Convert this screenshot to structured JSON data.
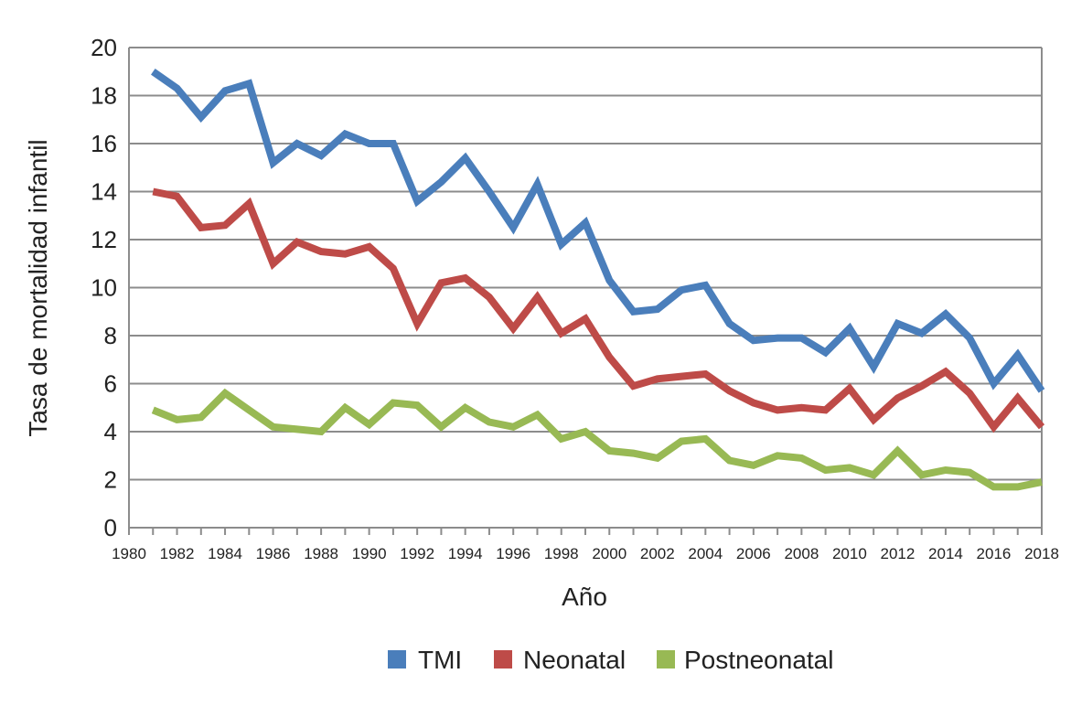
{
  "chart_data": {
    "type": "line",
    "xlabel": "Año",
    "ylabel": "Tasa de mortalidad infantil",
    "xlim": [
      1980,
      2018
    ],
    "ylim": [
      0,
      20
    ],
    "y_ticks": [
      0,
      2,
      4,
      6,
      8,
      10,
      12,
      14,
      16,
      18,
      20
    ],
    "x_ticks": [
      1980,
      1982,
      1984,
      1986,
      1988,
      1990,
      1992,
      1994,
      1996,
      1998,
      2000,
      2002,
      2004,
      2006,
      2008,
      2010,
      2012,
      2014,
      2016,
      2018
    ],
    "grid": true,
    "legend": "bottom",
    "x": [
      1981,
      1982,
      1983,
      1984,
      1985,
      1986,
      1987,
      1988,
      1989,
      1990,
      1991,
      1992,
      1993,
      1994,
      1995,
      1996,
      1997,
      1998,
      1999,
      2000,
      2001,
      2002,
      2003,
      2004,
      2005,
      2006,
      2007,
      2008,
      2009,
      2010,
      2011,
      2012,
      2013,
      2014,
      2015,
      2016,
      2017,
      2018
    ],
    "series": [
      {
        "name": "TMI",
        "color": "#4a7ebb",
        "values": [
          19.0,
          18.3,
          17.1,
          18.2,
          18.5,
          15.2,
          16.0,
          15.5,
          16.4,
          16.0,
          16.0,
          13.6,
          14.4,
          15.4,
          14.0,
          12.5,
          14.3,
          11.8,
          12.7,
          10.3,
          9.0,
          9.1,
          9.9,
          10.1,
          8.5,
          7.8,
          7.9,
          7.9,
          7.3,
          8.3,
          6.7,
          8.5,
          8.1,
          8.9,
          7.9,
          6.0,
          7.2,
          5.7
        ]
      },
      {
        "name": "Neonatal",
        "color": "#be4b48",
        "values": [
          14.0,
          13.8,
          12.5,
          12.6,
          13.5,
          11.0,
          11.9,
          11.5,
          11.4,
          11.7,
          10.8,
          8.5,
          10.2,
          10.4,
          9.6,
          8.3,
          9.6,
          8.1,
          8.7,
          7.1,
          5.9,
          6.2,
          6.3,
          6.4,
          5.7,
          5.2,
          4.9,
          5.0,
          4.9,
          5.8,
          4.5,
          5.4,
          5.9,
          6.5,
          5.6,
          4.2,
          5.4,
          4.2
        ]
      },
      {
        "name": "Postneonatal",
        "color": "#98b954",
        "values": [
          4.9,
          4.5,
          4.6,
          5.6,
          4.9,
          4.2,
          4.1,
          4.0,
          5.0,
          4.3,
          5.2,
          5.1,
          4.2,
          5.0,
          4.4,
          4.2,
          4.7,
          3.7,
          4.0,
          3.2,
          3.1,
          2.9,
          3.6,
          3.7,
          2.8,
          2.6,
          3.0,
          2.9,
          2.4,
          2.5,
          2.2,
          3.2,
          2.2,
          2.4,
          2.3,
          1.7,
          1.7,
          1.9
        ]
      }
    ]
  }
}
